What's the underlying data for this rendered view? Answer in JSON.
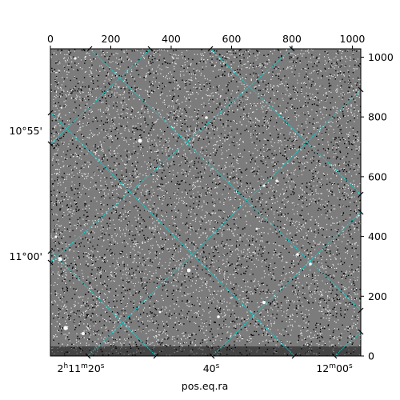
{
  "chart_data": {
    "type": "image",
    "title": "",
    "xlabel": "pos.eq.ra",
    "ylabel": "",
    "pixel_axes": {
      "x_range": [
        0,
        1028
      ],
      "y_range": [
        0,
        1028
      ],
      "x_ticks": [
        0,
        200,
        400,
        600,
        800,
        1000
      ],
      "y_ticks": [
        0,
        200,
        400,
        600,
        800,
        1000
      ],
      "x_tick_labels": [
        "0",
        "200",
        "400",
        "600",
        "800",
        "1000"
      ],
      "y_tick_labels": [
        "0",
        "200",
        "400",
        "600",
        "800",
        "1000"
      ],
      "x_ticks_placement": "top",
      "y_ticks_placement": "right"
    },
    "world_axes": {
      "ra_tick_labels": [
        {
          "main": "2",
          "sup1": "h",
          "mid": "11",
          "sup2": "m",
          "end": "20",
          "sup3": "s"
        },
        {
          "main": "",
          "sup1": "",
          "mid": "",
          "sup2": "",
          "end": "40",
          "sup3": "s"
        },
        {
          "main": "",
          "sup1": "",
          "mid": "12",
          "sup2": "m",
          "end": "00",
          "sup3": "s"
        }
      ],
      "ra_ticks_placement": "bottom",
      "dec_tick_labels": [
        "10°55'",
        "11°00'"
      ],
      "dec_ticks_placement": "left"
    },
    "image_style": "grayscale",
    "grid": true,
    "grid_color": "#00e5e5",
    "colors": {
      "frame": "#000000",
      "background": "#ffffff"
    }
  }
}
